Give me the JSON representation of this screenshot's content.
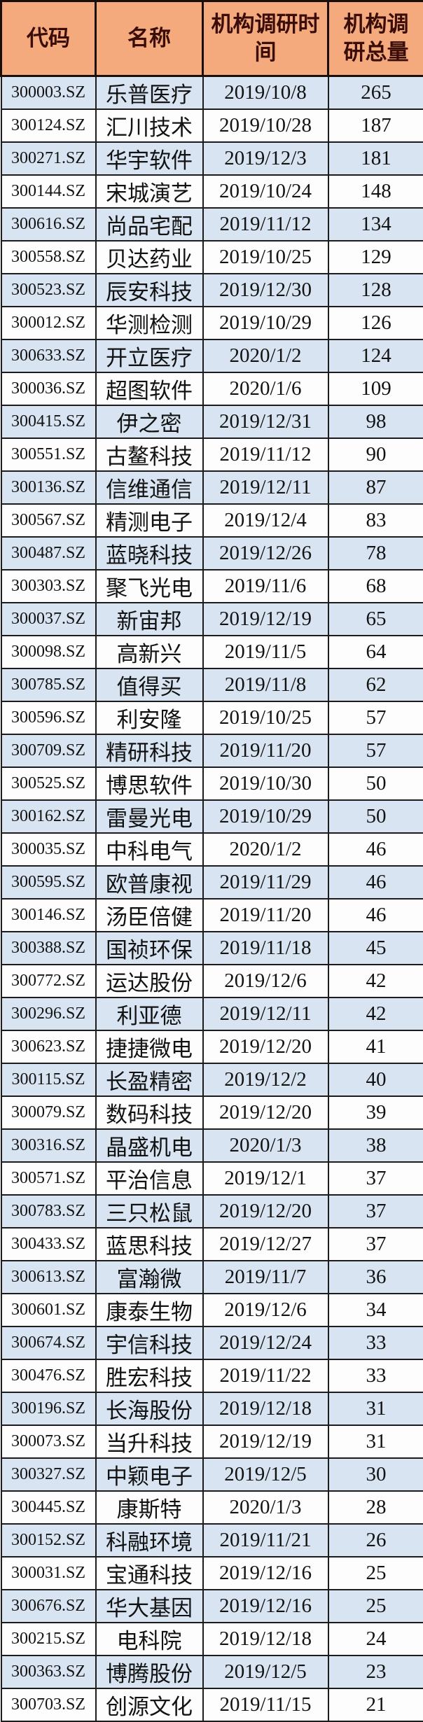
{
  "table": {
    "headers": [
      "代码",
      "名称",
      "机构调研时间",
      "机构调研总量"
    ]
  },
  "colors": {
    "header_bg": "#F4AA7D",
    "header_text": "#3A0D08",
    "row_alt_blue": "#D8E4F1",
    "row_white": "#FDFDFE",
    "grid": "#1C1C1C",
    "data_text": "#121212"
  },
  "chart_data": {
    "type": "table",
    "columns": [
      "代码",
      "名称",
      "机构调研时间",
      "机构调研总量"
    ],
    "rows": [
      [
        "300003.SZ",
        "乐普医疗",
        "2019/10/8",
        265
      ],
      [
        "300124.SZ",
        "汇川技术",
        "2019/10/28",
        187
      ],
      [
        "300271.SZ",
        "华宇软件",
        "2019/12/3",
        181
      ],
      [
        "300144.SZ",
        "宋城演艺",
        "2019/10/24",
        148
      ],
      [
        "300616.SZ",
        "尚品宅配",
        "2019/11/12",
        134
      ],
      [
        "300558.SZ",
        "贝达药业",
        "2019/10/25",
        129
      ],
      [
        "300523.SZ",
        "辰安科技",
        "2019/12/30",
        128
      ],
      [
        "300012.SZ",
        "华测检测",
        "2019/10/29",
        126
      ],
      [
        "300633.SZ",
        "开立医疗",
        "2020/1/2",
        124
      ],
      [
        "300036.SZ",
        "超图软件",
        "2020/1/6",
        109
      ],
      [
        "300415.SZ",
        "伊之密",
        "2019/12/31",
        98
      ],
      [
        "300551.SZ",
        "古鳌科技",
        "2019/11/12",
        90
      ],
      [
        "300136.SZ",
        "信维通信",
        "2019/12/11",
        87
      ],
      [
        "300567.SZ",
        "精测电子",
        "2019/12/4",
        83
      ],
      [
        "300487.SZ",
        "蓝晓科技",
        "2019/12/26",
        78
      ],
      [
        "300303.SZ",
        "聚飞光电",
        "2019/11/6",
        68
      ],
      [
        "300037.SZ",
        "新宙邦",
        "2019/12/19",
        65
      ],
      [
        "300098.SZ",
        "高新兴",
        "2019/11/5",
        64
      ],
      [
        "300785.SZ",
        "值得买",
        "2019/11/8",
        62
      ],
      [
        "300596.SZ",
        "利安隆",
        "2019/10/25",
        57
      ],
      [
        "300709.SZ",
        "精研科技",
        "2019/11/20",
        57
      ],
      [
        "300525.SZ",
        "博思软件",
        "2019/10/30",
        50
      ],
      [
        "300162.SZ",
        "雷曼光电",
        "2019/10/29",
        50
      ],
      [
        "300035.SZ",
        "中科电气",
        "2020/1/2",
        46
      ],
      [
        "300595.SZ",
        "欧普康视",
        "2019/11/29",
        46
      ],
      [
        "300146.SZ",
        "汤臣倍健",
        "2019/11/20",
        46
      ],
      [
        "300388.SZ",
        "国祯环保",
        "2019/11/18",
        45
      ],
      [
        "300772.SZ",
        "运达股份",
        "2019/12/6",
        42
      ],
      [
        "300296.SZ",
        "利亚德",
        "2019/12/11",
        42
      ],
      [
        "300623.SZ",
        "捷捷微电",
        "2019/12/20",
        41
      ],
      [
        "300115.SZ",
        "长盈精密",
        "2019/12/2",
        40
      ],
      [
        "300079.SZ",
        "数码科技",
        "2019/12/20",
        39
      ],
      [
        "300316.SZ",
        "晶盛机电",
        "2020/1/3",
        38
      ],
      [
        "300571.SZ",
        "平治信息",
        "2019/12/1",
        37
      ],
      [
        "300783.SZ",
        "三只松鼠",
        "2019/12/20",
        37
      ],
      [
        "300433.SZ",
        "蓝思科技",
        "2019/12/27",
        37
      ],
      [
        "300613.SZ",
        "富瀚微",
        "2019/11/7",
        36
      ],
      [
        "300601.SZ",
        "康泰生物",
        "2019/12/6",
        34
      ],
      [
        "300674.SZ",
        "宇信科技",
        "2019/12/24",
        33
      ],
      [
        "300476.SZ",
        "胜宏科技",
        "2019/11/22",
        33
      ],
      [
        "300196.SZ",
        "长海股份",
        "2019/12/18",
        31
      ],
      [
        "300073.SZ",
        "当升科技",
        "2019/12/19",
        31
      ],
      [
        "300327.SZ",
        "中颖电子",
        "2019/12/5",
        30
      ],
      [
        "300445.SZ",
        "康斯特",
        "2020/1/3",
        28
      ],
      [
        "300152.SZ",
        "科融环境",
        "2019/11/21",
        26
      ],
      [
        "300031.SZ",
        "宝通科技",
        "2019/12/16",
        25
      ],
      [
        "300676.SZ",
        "华大基因",
        "2019/12/16",
        25
      ],
      [
        "300215.SZ",
        "电科院",
        "2019/12/18",
        24
      ],
      [
        "300363.SZ",
        "博腾股份",
        "2019/12/5",
        23
      ],
      [
        "300703.SZ",
        "创源文化",
        "2019/11/15",
        21
      ]
    ]
  }
}
